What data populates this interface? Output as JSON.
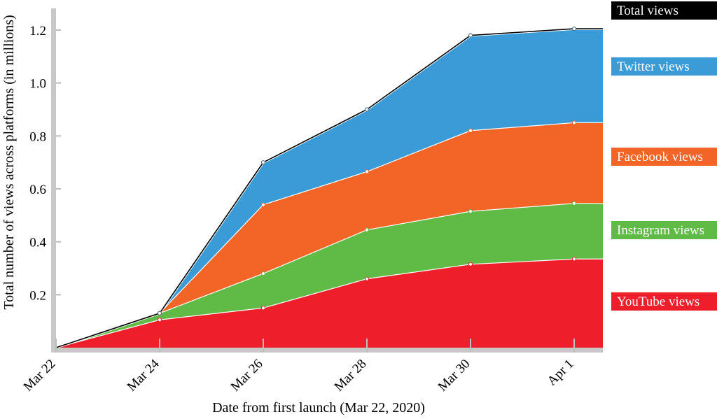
{
  "chart_data": {
    "type": "area",
    "stacked": true,
    "x": [
      "Mar 22",
      "Mar 24",
      "Mar 26",
      "Mar 28",
      "Mar 30",
      "Apr 1"
    ],
    "series": [
      {
        "name": "YouTube views",
        "color": "#ee1f2b",
        "values": [
          0.0,
          0.105,
          0.15,
          0.26,
          0.315,
          0.335
        ]
      },
      {
        "name": "Instagram views",
        "color": "#60ba46",
        "values": [
          0.0,
          0.025,
          0.13,
          0.185,
          0.2,
          0.21
        ]
      },
      {
        "name": "Facebook views",
        "color": "#f26527",
        "values": [
          0.0,
          0.0,
          0.26,
          0.22,
          0.305,
          0.305
        ]
      },
      {
        "name": "Twitter views",
        "color": "#3a9bd6",
        "values": [
          0.0,
          0.0,
          0.16,
          0.235,
          0.36,
          0.355
        ]
      }
    ],
    "total": {
      "name": "Total views",
      "color": "#000000",
      "values": [
        0.0,
        0.13,
        0.7,
        0.9,
        1.18,
        1.205
      ]
    },
    "xlabel": "Date from first launch (Mar 22, 2020)",
    "ylabel": "Total number of views across platforms (in millions)",
    "yticks": [
      "0.2",
      "0.4",
      "0.6",
      "0.8",
      "1.0",
      "1.2"
    ],
    "ylim": [
      0,
      1.23
    ],
    "legend_placement": "right",
    "grid": false
  }
}
